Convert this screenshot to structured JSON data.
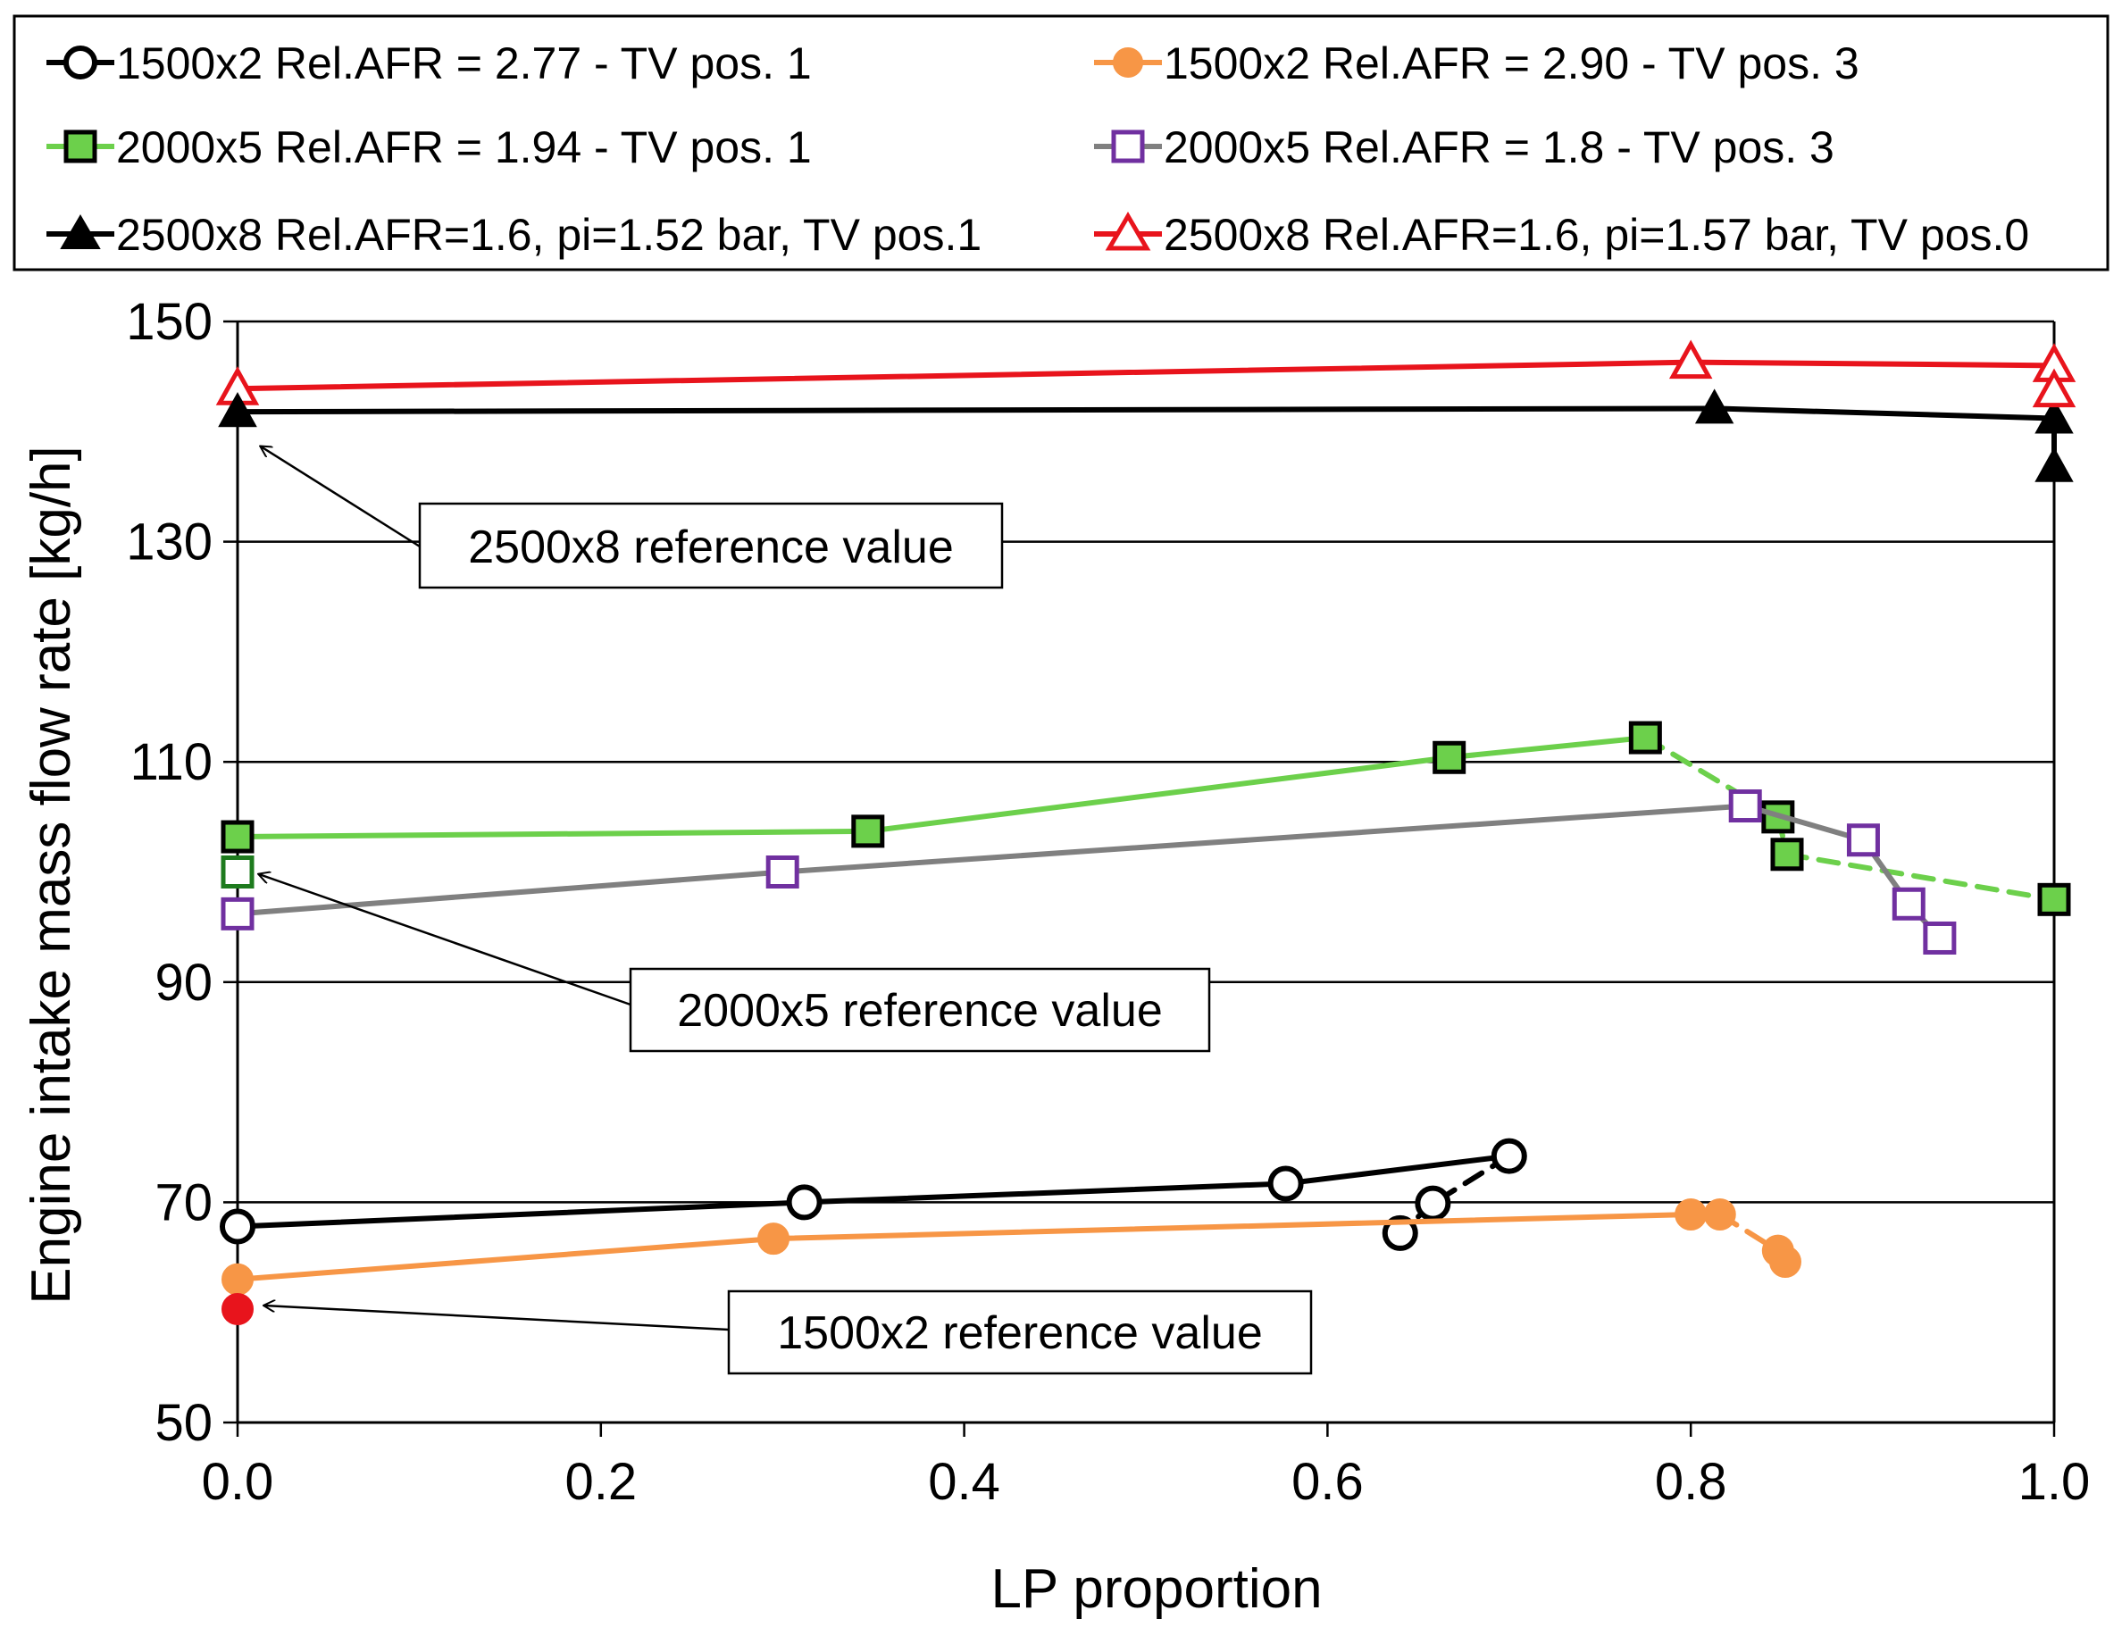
{
  "chart_data": {
    "type": "line",
    "title": "",
    "xlabel": "LP proportion",
    "ylabel": "Engine intake mass flow rate [kg/h]",
    "xlim": [
      0.0,
      1.0
    ],
    "ylim": [
      50,
      150
    ],
    "xticks": [
      "0.0",
      "0.2",
      "0.4",
      "0.6",
      "0.8",
      "1.0"
    ],
    "yticks": [
      "50",
      "70",
      "90",
      "110",
      "130",
      "150"
    ],
    "grid": "horizontal",
    "legend_position": "top",
    "series": [
      {
        "name": "1500x2 Rel.AFR = 2.77 - TV pos. 1",
        "color": "#000000",
        "marker": "circle-open",
        "x": [
          0.0,
          0.312,
          0.577,
          0.7,
          0.658,
          0.64
        ],
        "y": [
          67.8,
          70.0,
          71.7,
          74.2,
          69.9,
          67.2
        ],
        "dashed_from_index": 3
      },
      {
        "name": "1500x2 Rel.AFR = 2.90 - TV pos. 3",
        "color": "#F79646",
        "marker": "circle-filled",
        "x": [
          0.0,
          0.295,
          0.8,
          0.816,
          0.848,
          0.852
        ],
        "y": [
          63.0,
          66.7,
          68.9,
          68.9,
          65.6,
          64.6
        ],
        "dashed_from_index": 3
      },
      {
        "name": "2000x5 Rel.AFR = 1.94 - TV pos. 1",
        "color": "#6CD04B",
        "marker": "square-filled",
        "x": [
          0.0,
          0.347,
          0.667,
          0.775,
          0.848,
          0.853,
          1.0
        ],
        "y": [
          103.2,
          103.7,
          110.4,
          112.2,
          105.0,
          101.6,
          97.5
        ],
        "dashed_from_index": 3
      },
      {
        "name": "2000x5 Rel.AFR = 1.8 - TV pos. 3",
        "color": "#808080",
        "marker": "square-open-purple",
        "x": [
          0.0,
          0.3,
          0.83,
          0.895,
          0.92,
          0.937
        ],
        "y": [
          96.2,
          100.0,
          106.0,
          102.9,
          97.1,
          94.0
        ],
        "dashed_from_index": 99
      },
      {
        "name": "2500x8 Rel.AFR=1.6, pi=1.52 bar, TV pos.1",
        "color": "#000000",
        "marker": "triangle-filled",
        "x": [
          0.0,
          0.813,
          1.0,
          1.0
        ],
        "y": [
          141.8,
          142.1,
          141.2,
          136.8
        ],
        "dashed_from_index": 99
      },
      {
        "name": "2500x8 Rel.AFR=1.6, pi=1.57 bar, TV pos.0",
        "color": "#E8141C",
        "marker": "triangle-open",
        "x": [
          0.0,
          0.8,
          1.0,
          1.0
        ],
        "y": [
          143.9,
          146.3,
          146.0,
          143.7
        ],
        "dashed_from_index": 99
      }
    ],
    "reference_points": [
      {
        "label": "1500x2 reference value",
        "x": 0.0,
        "y": 60.3,
        "color": "#E8141C",
        "marker": "circle-filled"
      },
      {
        "label": "2000x5 reference value",
        "x": 0.0,
        "y": 100.0,
        "color": "#1E7B1E",
        "marker": "square-open"
      },
      {
        "label": "2500x8 reference value",
        "x": 0.0,
        "y": 141.8,
        "color": "#000000",
        "marker": "triangle-filled"
      }
    ]
  }
}
